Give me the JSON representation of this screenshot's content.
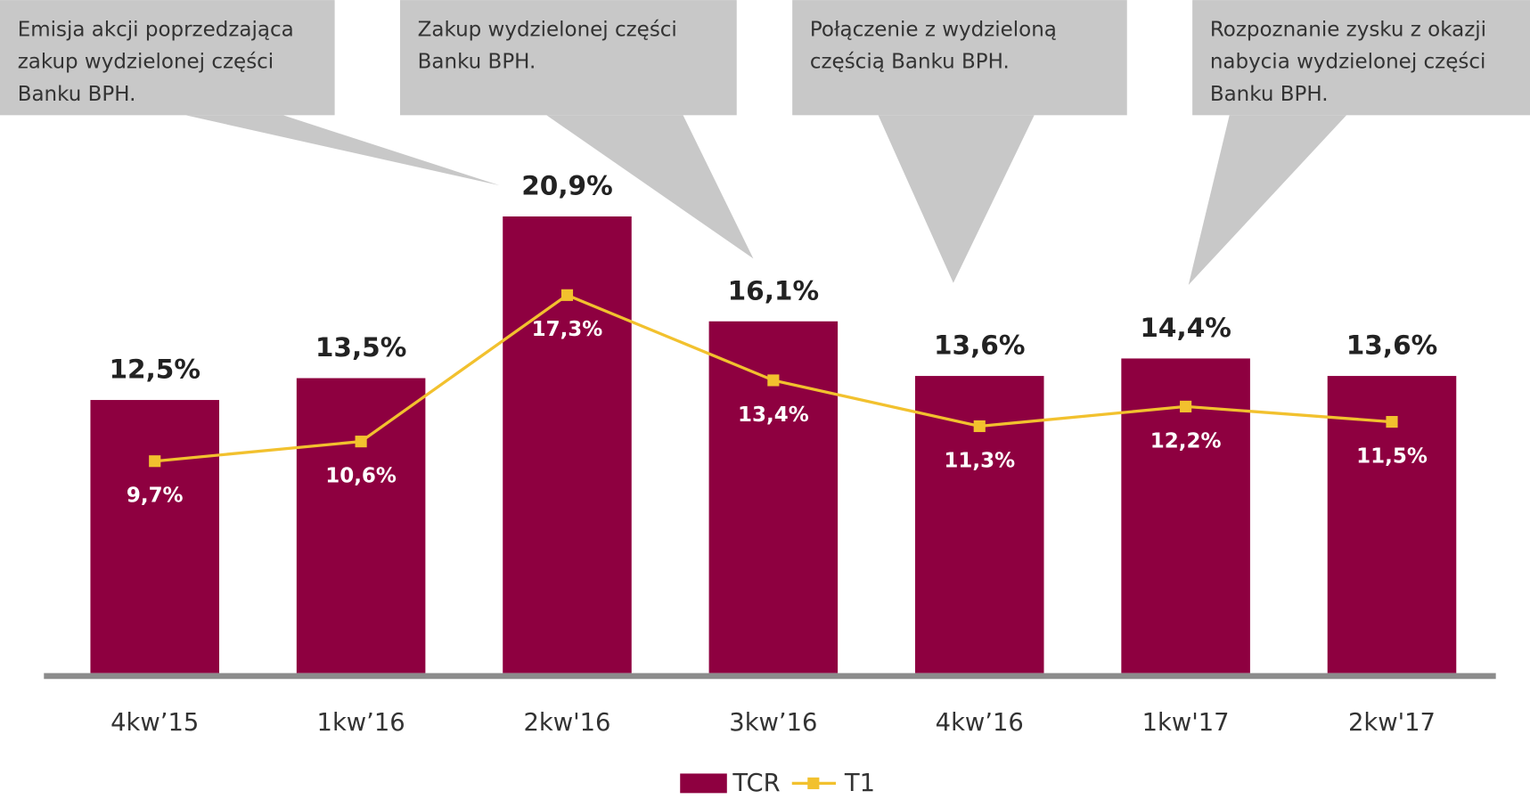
{
  "chart_data": {
    "type": "bar-line",
    "categories": [
      "4kw’15",
      "1kw’16",
      "2kw'16",
      "3kw’16",
      "4kw’16",
      "1kw'17",
      "2kw'17"
    ],
    "series": [
      {
        "name": "TCR",
        "type": "bar",
        "color": "#8e0040",
        "values": [
          12.5,
          13.5,
          20.9,
          16.1,
          13.6,
          14.4,
          13.6
        ],
        "value_labels": [
          "12,5%",
          "13,5%",
          "20,9%",
          "16,1%",
          "13,6%",
          "14,4%",
          "13,6%"
        ]
      },
      {
        "name": "T1",
        "type": "line",
        "color": "#f2c12e",
        "values": [
          9.7,
          10.6,
          17.3,
          13.4,
          11.3,
          12.2,
          11.5
        ],
        "value_labels": [
          "9,7%",
          "10,6%",
          "17,3%",
          "13,4%",
          "11,3%",
          "12,2%",
          "11,5%"
        ]
      }
    ],
    "ylim": [
      0,
      30
    ],
    "annotations": [
      [
        "Emisja akcji poprzedzająca",
        "zakup wydzielonej części",
        "Banku BPH."
      ],
      [
        "Zakup wydzielonej części",
        "Banku BPH."
      ],
      [
        "Połączenie z wydzieloną",
        "częścią Banku BPH."
      ],
      [
        "Rozpoznanie zysku z okazji",
        "nabycia wydzielonej części",
        "Banku BPH."
      ]
    ]
  }
}
